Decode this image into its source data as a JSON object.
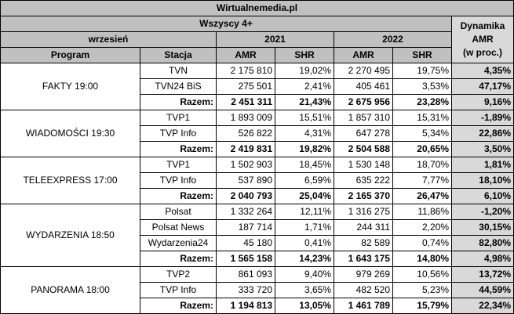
{
  "table": {
    "title": "Wirtualnemedia.pl",
    "subtitle": "Wszyscy 4+",
    "month_label": "wrzesień",
    "year1": "2021",
    "year2": "2022",
    "dyn_header": [
      "Dynamika",
      "AMR",
      "(w proc.)"
    ],
    "col_program": "Program",
    "col_station": "Stacja",
    "col_amr": "AMR",
    "col_shr": "SHR",
    "groups": [
      {
        "program": "FAKTY 19:00",
        "rows": [
          {
            "station": "TVN",
            "amr21": "2 175 810",
            "shr21": "19,02%",
            "amr22": "2 270 495",
            "shr22": "19,75%",
            "dyn": "4,35%"
          },
          {
            "station": "TVN24 BiS",
            "amr21": "275 501",
            "shr21": "2,41%",
            "amr22": "405 461",
            "shr22": "3,53%",
            "dyn": "47,17%"
          },
          {
            "station": "Razem:",
            "amr21": "2 451 311",
            "shr21": "21,43%",
            "amr22": "2 675 956",
            "shr22": "23,28%",
            "dyn": "9,16%"
          }
        ]
      },
      {
        "program": "WIADOMOŚCI 19:30",
        "rows": [
          {
            "station": "TVP1",
            "amr21": "1 893 009",
            "shr21": "15,51%",
            "amr22": "1 857 310",
            "shr22": "15,31%",
            "dyn": "-1,89%"
          },
          {
            "station": "TVP Info",
            "amr21": "526 822",
            "shr21": "4,31%",
            "amr22": "647 278",
            "shr22": "5,34%",
            "dyn": "22,86%"
          },
          {
            "station": "Razem:",
            "amr21": "2 419 831",
            "shr21": "19,82%",
            "amr22": "2 504 588",
            "shr22": "20,65%",
            "dyn": "3,50%"
          }
        ]
      },
      {
        "program": "TELEEXPRESS 17:00",
        "rows": [
          {
            "station": "TVP1",
            "amr21": "1 502 903",
            "shr21": "18,45%",
            "amr22": "1 530 148",
            "shr22": "18,70%",
            "dyn": "1,81%"
          },
          {
            "station": "TVP Info",
            "amr21": "537 890",
            "shr21": "6,59%",
            "amr22": "635 222",
            "shr22": "7,77%",
            "dyn": "18,10%"
          },
          {
            "station": "Razem:",
            "amr21": "2 040 793",
            "shr21": "25,04%",
            "amr22": "2 165 370",
            "shr22": "26,47%",
            "dyn": "6,10%"
          }
        ]
      },
      {
        "program": "WYDARZENIA 18:50",
        "rows": [
          {
            "station": "Polsat",
            "amr21": "1 332 264",
            "shr21": "12,11%",
            "amr22": "1 316 275",
            "shr22": "11,86%",
            "dyn": "-1,20%"
          },
          {
            "station": "Polsat News",
            "amr21": "187 714",
            "shr21": "1,71%",
            "amr22": "244 311",
            "shr22": "2,20%",
            "dyn": "30,15%"
          },
          {
            "station": "Wydarzenia24",
            "amr21": "45 180",
            "shr21": "0,41%",
            "amr22": "82 589",
            "shr22": "0,74%",
            "dyn": "82,80%"
          },
          {
            "station": "Razem:",
            "amr21": "1 565 158",
            "shr21": "14,23%",
            "amr22": "1 643 175",
            "shr22": "14,80%",
            "dyn": "4,98%"
          }
        ]
      },
      {
        "program": "PANORAMA 18:00",
        "rows": [
          {
            "station": "TVP2",
            "amr21": "861 093",
            "shr21": "9,40%",
            "amr22": "979 269",
            "shr22": "10,56%",
            "dyn": "13,72%"
          },
          {
            "station": "TVP Info",
            "amr21": "333 720",
            "shr21": "3,65%",
            "amr22": "482 520",
            "shr22": "5,23%",
            "dyn": "44,59%"
          },
          {
            "station": "Razem:",
            "amr21": "1 194 813",
            "shr21": "13,05%",
            "amr22": "1 461 789",
            "shr22": "15,79%",
            "dyn": "22,34%"
          }
        ]
      }
    ]
  }
}
